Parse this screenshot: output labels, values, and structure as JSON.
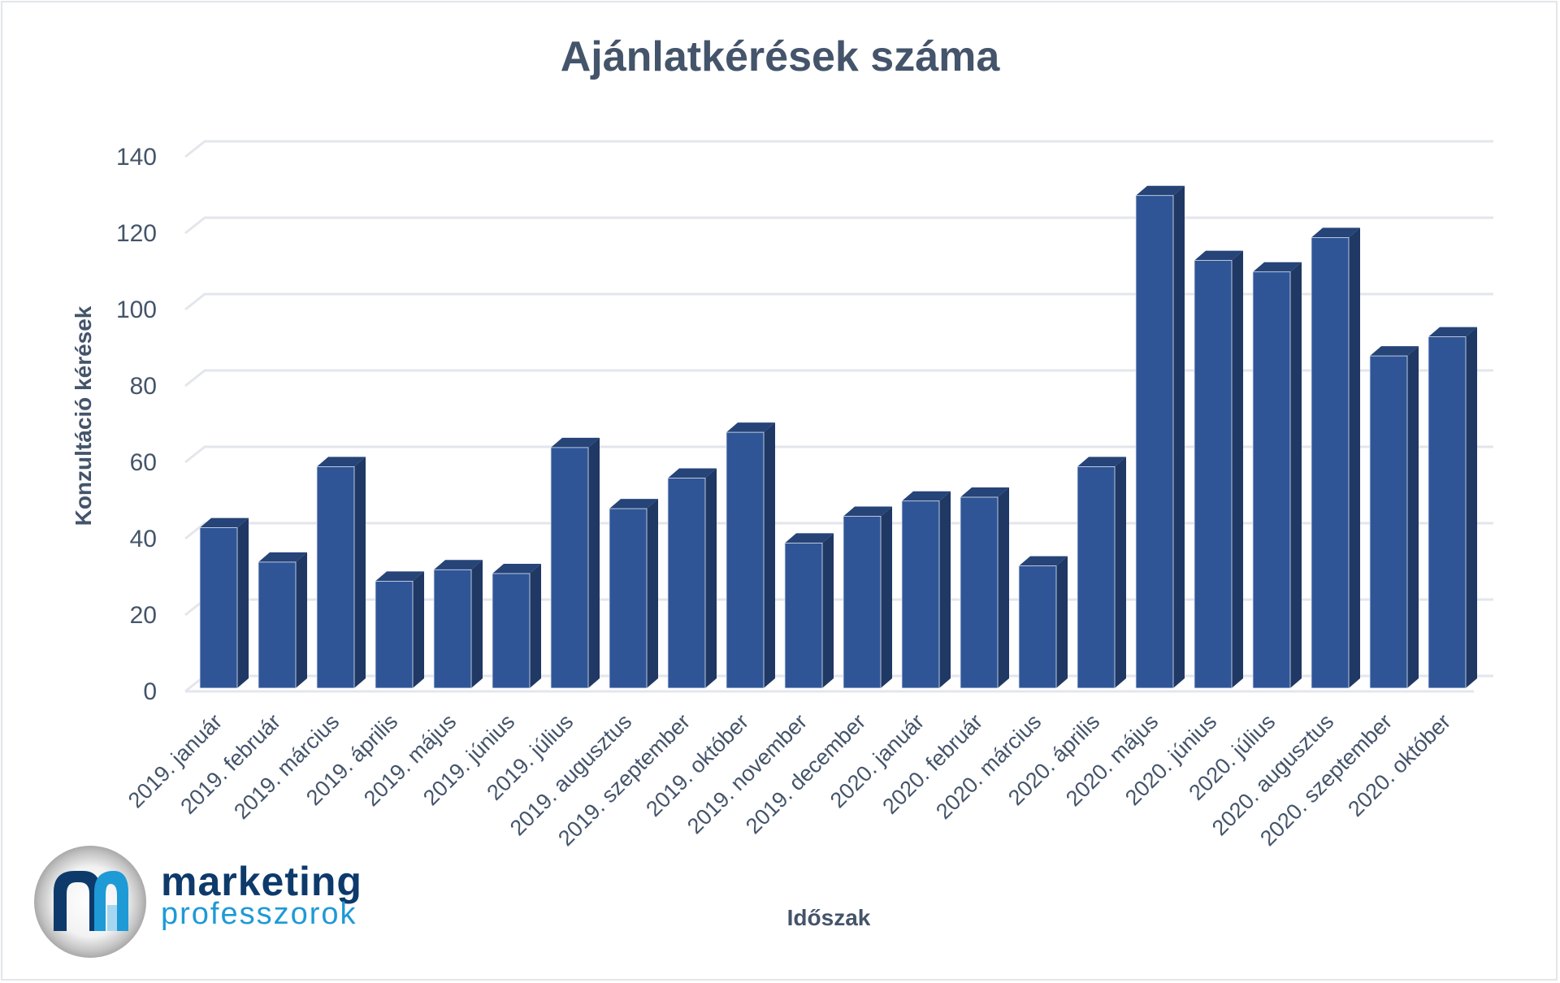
{
  "chart_data": {
    "type": "bar",
    "title": "Ajánlatkérések száma",
    "xlabel": "Időszak",
    "ylabel": "Konzultáció kérések",
    "ylim": [
      0,
      140
    ],
    "yticks": [
      0,
      20,
      40,
      60,
      80,
      100,
      120,
      140
    ],
    "grid": true,
    "legend": null,
    "style": "3d-column",
    "color": "#2f5597",
    "categories": [
      "2019. január",
      "2019. február",
      "2019. március",
      "2019. április",
      "2019. május",
      "2019. június",
      "2019. július",
      "2019. augusztus",
      "2019. szeptember",
      "2019. október",
      "2019. november",
      "2019. december",
      "2020. január",
      "2020. február",
      "2020. március",
      "2020. április",
      "2020. május",
      "2020. június",
      "2020. július",
      "2020. augusztus",
      "2020. szeptember",
      "2020. október"
    ],
    "values": [
      42,
      33,
      58,
      28,
      31,
      30,
      63,
      47,
      55,
      67,
      38,
      45,
      49,
      50,
      32,
      58,
      129,
      112,
      109,
      118,
      87,
      92
    ]
  },
  "colors": {
    "bar_front": "#2f5597",
    "bar_top": "#264478",
    "bar_side": "#203864",
    "grid": "#e3e6ec",
    "text": "#44546a"
  },
  "logo": {
    "line1": "marketing",
    "line2": "professzorok"
  }
}
